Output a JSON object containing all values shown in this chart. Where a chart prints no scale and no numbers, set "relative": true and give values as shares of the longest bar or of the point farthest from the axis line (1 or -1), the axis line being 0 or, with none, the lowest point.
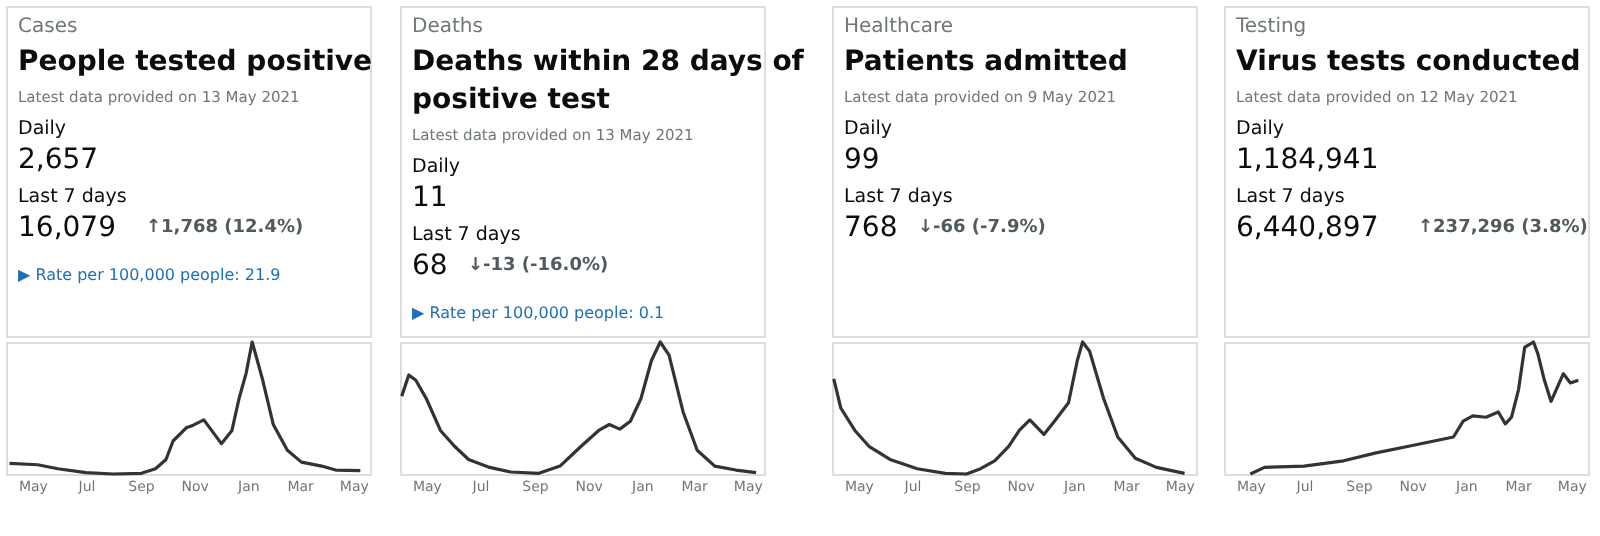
{
  "chart_data": [
    {
      "type": "line",
      "title": "People tested positive",
      "relative": true,
      "color": "#333333",
      "annotations": [
        "Cases",
        "Latest data provided on 13 May 2021",
        "Daily",
        "2,657",
        "Last 7 days",
        "16,079",
        "↑1,768 (12.4%)",
        "▶ Rate per 100,000 people: 21.9"
      ],
      "x": [
        "2020-04-05",
        "2020-05-07",
        "2020-05-30",
        "2020-07-01",
        "2020-08-01",
        "2020-09-02",
        "2020-09-18",
        "2020-09-30",
        "2020-10-08",
        "2020-10-23",
        "2020-10-31",
        "2020-11-12",
        "2020-12-02",
        "2020-12-14",
        "2020-12-22",
        "2020-12-30",
        "2021-01-06",
        "2021-01-18",
        "2021-01-30",
        "2021-02-15",
        "2021-03-03",
        "2021-03-26",
        "2021-04-11",
        "2021-05-09"
      ],
      "values": [
        0.08,
        0.07,
        0.04,
        0.01,
        0,
        0.005,
        0.04,
        0.11,
        0.25,
        0.35,
        0.37,
        0.41,
        0.23,
        0.33,
        0.57,
        0.76,
        1,
        0.71,
        0.375,
        0.18,
        0.09,
        0.06,
        0.03,
        0.025
      ],
      "xlim": [
        "2020-04-01",
        "2021-05-20"
      ],
      "xticks": [
        {
          "value": "2020-05-01",
          "label": "May"
        },
        {
          "value": "2020-07-01",
          "label": "Jul"
        },
        {
          "value": "2020-09-01",
          "label": "Sep"
        },
        {
          "value": "2020-11-01",
          "label": "Nov"
        },
        {
          "value": "2021-01-01",
          "label": "Jan"
        },
        {
          "value": "2021-03-01",
          "label": "Mar"
        },
        {
          "value": "2021-05-01",
          "label": "May"
        }
      ]
    },
    {
      "type": "line",
      "title": "Deaths within 28 days of positive test",
      "relative": true,
      "color": "#333333",
      "annotations": [
        "Deaths",
        "Latest data provided on 13 May 2021",
        "Daily",
        "11",
        "Last 7 days",
        "68",
        "↓-13 (-16.0%)",
        "▶ Rate per 100,000 people: 0.1"
      ],
      "x": [
        "2020-04-03",
        "2020-04-11",
        "2020-04-19",
        "2020-05-01",
        "2020-05-17",
        "2020-06-02",
        "2020-06-18",
        "2020-07-12",
        "2020-08-05",
        "2020-09-06",
        "2020-09-30",
        "2020-10-24",
        "2020-11-13",
        "2020-11-25",
        "2020-12-07",
        "2020-12-19",
        "2020-12-31",
        "2021-01-12",
        "2021-01-22",
        "2021-02-01",
        "2021-02-17",
        "2021-03-05",
        "2021-03-25",
        "2021-04-18",
        "2021-05-11"
      ],
      "values": [
        0.59,
        0.75,
        0.71,
        0.57,
        0.33,
        0.21,
        0.11,
        0.05,
        0.015,
        0.005,
        0.06,
        0.21,
        0.33,
        0.375,
        0.34,
        0.4,
        0.57,
        0.86,
        1,
        0.9,
        0.47,
        0.18,
        0.06,
        0.03,
        0.01
      ],
      "xlim": [
        "2020-04-01",
        "2021-05-20"
      ],
      "xticks": [
        {
          "value": "2020-05-01",
          "label": "May"
        },
        {
          "value": "2020-07-01",
          "label": "Jul"
        },
        {
          "value": "2020-09-01",
          "label": "Sep"
        },
        {
          "value": "2020-11-01",
          "label": "Nov"
        },
        {
          "value": "2021-01-01",
          "label": "Jan"
        },
        {
          "value": "2021-03-01",
          "label": "Mar"
        },
        {
          "value": "2021-05-01",
          "label": "May"
        }
      ]
    },
    {
      "type": "line",
      "title": "Patients admitted",
      "relative": true,
      "color": "#333333",
      "annotations": [
        "Healthcare",
        "Latest data provided on 9 May 2021",
        "Daily",
        "99",
        "Last 7 days",
        "768",
        "↓-66 (-7.9%)"
      ],
      "x": [
        "2020-04-03",
        "2020-04-11",
        "2020-04-27",
        "2020-05-13",
        "2020-06-06",
        "2020-07-07",
        "2020-08-08",
        "2020-09-01",
        "2020-09-17",
        "2020-10-03",
        "2020-10-19",
        "2020-10-31",
        "2020-11-12",
        "2020-11-28",
        "2020-12-10",
        "2020-12-26",
        "2021-01-05",
        "2021-01-11",
        "2021-01-19",
        "2021-02-04",
        "2021-02-20",
        "2021-03-12",
        "2021-04-05",
        "2021-05-07"
      ],
      "values": [
        0.72,
        0.5,
        0.33,
        0.21,
        0.11,
        0.04,
        0.005,
        0,
        0.04,
        0.1,
        0.21,
        0.33,
        0.41,
        0.3,
        0.4,
        0.54,
        0.86,
        1,
        0.93,
        0.57,
        0.28,
        0.12,
        0.05,
        0.005
      ],
      "xlim": [
        "2020-04-01",
        "2021-05-20"
      ],
      "xticks": [
        {
          "value": "2020-05-01",
          "label": "May"
        },
        {
          "value": "2020-07-01",
          "label": "Jul"
        },
        {
          "value": "2020-09-01",
          "label": "Sep"
        },
        {
          "value": "2020-11-01",
          "label": "Nov"
        },
        {
          "value": "2021-01-01",
          "label": "Jan"
        },
        {
          "value": "2021-03-01",
          "label": "Mar"
        },
        {
          "value": "2021-05-01",
          "label": "May"
        }
      ]
    },
    {
      "type": "line",
      "title": "Virus tests conducted",
      "relative": true,
      "color": "#333333",
      "annotations": [
        "Testing",
        "Latest data provided on 12 May 2021",
        "Daily",
        "1,184,941",
        "Last 7 days",
        "6,440,897",
        "↑237,296 (3.8%)"
      ],
      "x": [
        "2020-05-01",
        "2020-05-17",
        "2020-07-01",
        "2020-08-15",
        "2020-09-21",
        "2020-10-28",
        "2020-11-26",
        "2020-12-18",
        "2020-12-29",
        "2021-01-09",
        "2021-01-24",
        "2021-02-07",
        "2021-02-15",
        "2021-02-22",
        "2021-03-02",
        "2021-03-09",
        "2021-03-19",
        "2021-03-24",
        "2021-03-31",
        "2021-04-08",
        "2021-04-22",
        "2021-04-30",
        "2021-05-09"
      ],
      "values": [
        0,
        0.05,
        0.06,
        0.1,
        0.16,
        0.21,
        0.25,
        0.28,
        0.4,
        0.44,
        0.43,
        0.47,
        0.38,
        0.43,
        0.64,
        0.96,
        1,
        0.91,
        0.72,
        0.55,
        0.76,
        0.69,
        0.71
      ],
      "xlim": [
        "2020-04-01",
        "2021-05-20"
      ],
      "xticks": [
        {
          "value": "2020-05-01",
          "label": "May"
        },
        {
          "value": "2020-07-01",
          "label": "Jul"
        },
        {
          "value": "2020-09-01",
          "label": "Sep"
        },
        {
          "value": "2020-11-01",
          "label": "Nov"
        },
        {
          "value": "2021-01-01",
          "label": "Jan"
        },
        {
          "value": "2021-03-01",
          "label": "Mar"
        },
        {
          "value": "2021-05-01",
          "label": "May"
        }
      ]
    }
  ]
}
